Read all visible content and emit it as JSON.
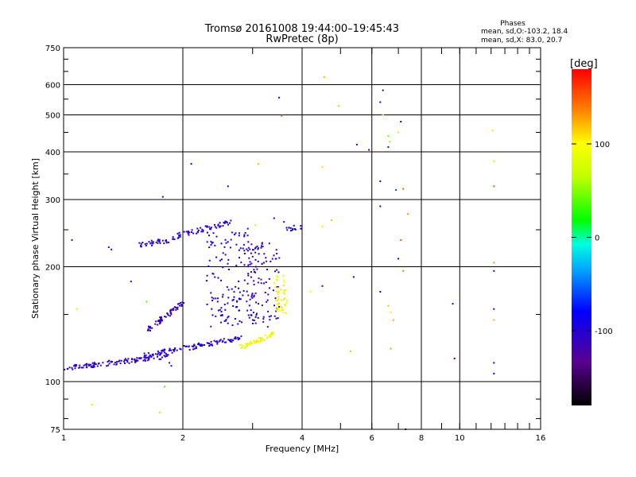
{
  "chart_data": {
    "type": "scatter",
    "title": "Tromsø 20161008 19:44:00–19:45:43",
    "subtitle": "RwPretec (8p)",
    "xlabel": "Frequency [MHz]",
    "ylabel": "Stationary phase Virtual Height [km]",
    "x_scale": "log",
    "y_scale": "log",
    "xlim": [
      1,
      16
    ],
    "ylim": [
      75,
      750
    ],
    "x_ticks": [
      1,
      2,
      4,
      6,
      8,
      10,
      16
    ],
    "x_tick_labels": [
      "1",
      "2",
      "4",
      "6",
      "8",
      "10",
      "16"
    ],
    "y_ticks": [
      75,
      100,
      200,
      300,
      400,
      500,
      600,
      750
    ],
    "y_tick_labels": [
      "75",
      "100",
      "200",
      "300",
      "400",
      "500",
      "600",
      "750"
    ],
    "grid": true,
    "stats": {
      "heading": "Phases",
      "line_o": "mean, sd,O:-103.2, 18.4",
      "line_x": "mean, sd,X:  83.0, 20.7"
    },
    "colorbar": {
      "label": "[deg]",
      "range": [
        -180,
        180
      ],
      "ticks": [
        100,
        0,
        -100
      ],
      "tick_labels": [
        "100",
        "0",
        "-100"
      ]
    },
    "traces": [
      {
        "name": "",
        "f_start": 1.0,
        "f_end": 1.85,
        "h_start": 108,
        "h_end": 117,
        "phase": -108,
        "n": 120
      },
      {
        "name": "",
        "f_start": 1.6,
        "f_end": 2.8,
        "h_start": 117,
        "h_end": 130,
        "phase": -100,
        "n": 110
      },
      {
        "name": "",
        "f_start": 1.55,
        "f_end": 1.85,
        "h_start": 228,
        "h_end": 235,
        "phase": -105,
        "n": 35
      },
      {
        "name": "",
        "f_start": 1.85,
        "f_end": 2.65,
        "h_start": 238,
        "h_end": 262,
        "phase": -100,
        "n": 60
      },
      {
        "name": "",
        "f_start": 1.6,
        "f_end": 2.0,
        "h_start": 135,
        "h_end": 160,
        "phase": -110,
        "n": 60
      },
      {
        "name": "",
        "f_start": 2.3,
        "f_end": 3.1,
        "h_start": 140,
        "h_end": 250,
        "phase": -98,
        "n": 160
      },
      {
        "name": "",
        "f_start": 2.9,
        "f_end": 3.5,
        "h_start": 140,
        "h_end": 230,
        "phase": -112,
        "n": 80
      },
      {
        "name": "",
        "f_start": 2.8,
        "f_end": 3.4,
        "h_start": 123,
        "h_end": 133,
        "phase": 95,
        "n": 60
      },
      {
        "name": "",
        "f_start": 3.4,
        "f_end": 3.65,
        "h_start": 150,
        "h_end": 190,
        "phase": 100,
        "n": 50
      },
      {
        "name": "",
        "f_start": 3.6,
        "f_end": 4.0,
        "h_start": 250,
        "h_end": 255,
        "phase": -90,
        "n": 15
      }
    ],
    "points": [
      {
        "x": 1.05,
        "y": 235,
        "phase": -110
      },
      {
        "x": 1.3,
        "y": 225,
        "phase": -110
      },
      {
        "x": 1.32,
        "y": 222,
        "phase": -108
      },
      {
        "x": 1.78,
        "y": 305,
        "phase": -105
      },
      {
        "x": 2.1,
        "y": 372,
        "phase": -80
      },
      {
        "x": 2.6,
        "y": 325,
        "phase": -85
      },
      {
        "x": 3.5,
        "y": 555,
        "phase": -95
      },
      {
        "x": 3.55,
        "y": 497,
        "phase": 140
      },
      {
        "x": 4.55,
        "y": 628,
        "phase": 120
      },
      {
        "x": 4.95,
        "y": 528,
        "phase": 120
      },
      {
        "x": 4.5,
        "y": 365,
        "phase": 110
      },
      {
        "x": 4.5,
        "y": 255,
        "phase": 105
      },
      {
        "x": 5.5,
        "y": 418,
        "phase": -110
      },
      {
        "x": 5.9,
        "y": 405,
        "phase": -100
      },
      {
        "x": 6.3,
        "y": 540,
        "phase": -95
      },
      {
        "x": 6.4,
        "y": 500,
        "phase": 110
      },
      {
        "x": 6.6,
        "y": 440,
        "phase": 40
      },
      {
        "x": 6.65,
        "y": 425,
        "phase": 60
      },
      {
        "x": 7.0,
        "y": 450,
        "phase": 70
      },
      {
        "x": 7.1,
        "y": 480,
        "phase": -105
      },
      {
        "x": 6.6,
        "y": 412,
        "phase": -110
      },
      {
        "x": 6.9,
        "y": 318,
        "phase": -60
      },
      {
        "x": 7.2,
        "y": 320,
        "phase": 150
      },
      {
        "x": 6.3,
        "y": 335,
        "phase": -100
      },
      {
        "x": 6.3,
        "y": 288,
        "phase": -90
      },
      {
        "x": 7.4,
        "y": 275,
        "phase": 130
      },
      {
        "x": 7.1,
        "y": 235,
        "phase": 150
      },
      {
        "x": 7.0,
        "y": 210,
        "phase": -80
      },
      {
        "x": 7.2,
        "y": 195,
        "phase": 140
      },
      {
        "x": 5.4,
        "y": 188,
        "phase": -90
      },
      {
        "x": 4.5,
        "y": 178,
        "phase": -100
      },
      {
        "x": 6.3,
        "y": 172,
        "phase": -80
      },
      {
        "x": 6.6,
        "y": 158,
        "phase": 120
      },
      {
        "x": 6.7,
        "y": 152,
        "phase": 110
      },
      {
        "x": 6.8,
        "y": 145,
        "phase": 125
      },
      {
        "x": 6.7,
        "y": 122,
        "phase": 130
      },
      {
        "x": 5.3,
        "y": 120,
        "phase": 120
      },
      {
        "x": 9.6,
        "y": 160,
        "phase": -90
      },
      {
        "x": 9.7,
        "y": 115,
        "phase": -90
      },
      {
        "x": 12.1,
        "y": 455,
        "phase": 110
      },
      {
        "x": 12.2,
        "y": 378,
        "phase": 110
      },
      {
        "x": 12.2,
        "y": 325,
        "phase": 150
      },
      {
        "x": 12.2,
        "y": 205,
        "phase": 130
      },
      {
        "x": 12.2,
        "y": 195,
        "phase": -100
      },
      {
        "x": 12.2,
        "y": 155,
        "phase": -100
      },
      {
        "x": 12.2,
        "y": 145,
        "phase": 120
      },
      {
        "x": 12.2,
        "y": 112,
        "phase": -100
      },
      {
        "x": 12.2,
        "y": 105,
        "phase": -80
      },
      {
        "x": 1.08,
        "y": 155,
        "phase": 110
      },
      {
        "x": 1.18,
        "y": 87,
        "phase": 110
      },
      {
        "x": 1.75,
        "y": 83,
        "phase": 115
      },
      {
        "x": 1.8,
        "y": 97,
        "phase": 30
      },
      {
        "x": 1.48,
        "y": 183,
        "phase": -100
      },
      {
        "x": 1.62,
        "y": 162,
        "phase": 40
      },
      {
        "x": 1.85,
        "y": 112,
        "phase": -110
      },
      {
        "x": 1.87,
        "y": 110,
        "phase": -110
      },
      {
        "x": 3.1,
        "y": 372,
        "phase": 120
      },
      {
        "x": 3.05,
        "y": 257,
        "phase": 110
      },
      {
        "x": 3.4,
        "y": 268,
        "phase": -90
      },
      {
        "x": 3.6,
        "y": 262,
        "phase": -95
      },
      {
        "x": 4.2,
        "y": 172,
        "phase": 100
      },
      {
        "x": 4.75,
        "y": 265,
        "phase": 120
      },
      {
        "x": 7.3,
        "y": 75,
        "phase": -100
      },
      {
        "x": 6.4,
        "y": 580,
        "phase": -100
      }
    ]
  }
}
